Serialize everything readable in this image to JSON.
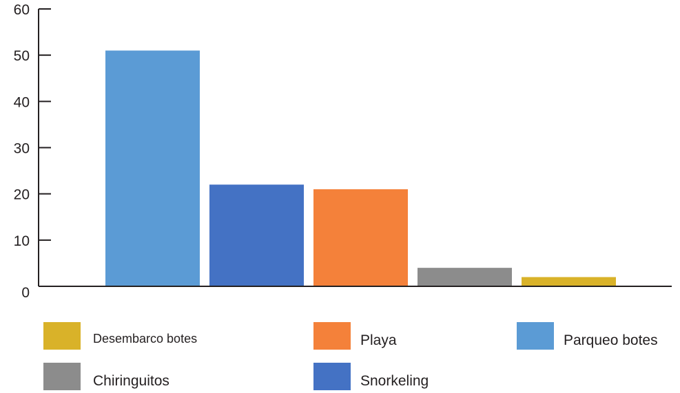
{
  "chart_data": {
    "type": "bar",
    "title": "",
    "xlabel": "",
    "ylabel": "",
    "ylim": [
      0,
      60
    ],
    "yticks": [
      0,
      10,
      20,
      30,
      40,
      50,
      60
    ],
    "grid": false,
    "legend_position": "bottom",
    "bars": [
      {
        "name": "Parqueo botes",
        "value": 51,
        "color": "#5b9bd5"
      },
      {
        "name": "Snorkeling",
        "value": 22,
        "color": "#4472c4"
      },
      {
        "name": "Playa",
        "value": 21,
        "color": "#f4813a"
      },
      {
        "name": "Chiringuitos",
        "value": 4,
        "color": "#8c8c8c"
      },
      {
        "name": "Desembarco botes",
        "value": 2,
        "color": "#d9b229"
      }
    ],
    "legend": [
      {
        "label": "Desembarco botes",
        "color": "#d9b229"
      },
      {
        "label": "Playa",
        "color": "#f4813a"
      },
      {
        "label": "Parqueo botes",
        "color": "#5b9bd5"
      },
      {
        "label": "Chiringuitos",
        "color": "#8c8c8c"
      },
      {
        "label": "Snorkeling",
        "color": "#4472c4"
      }
    ]
  }
}
